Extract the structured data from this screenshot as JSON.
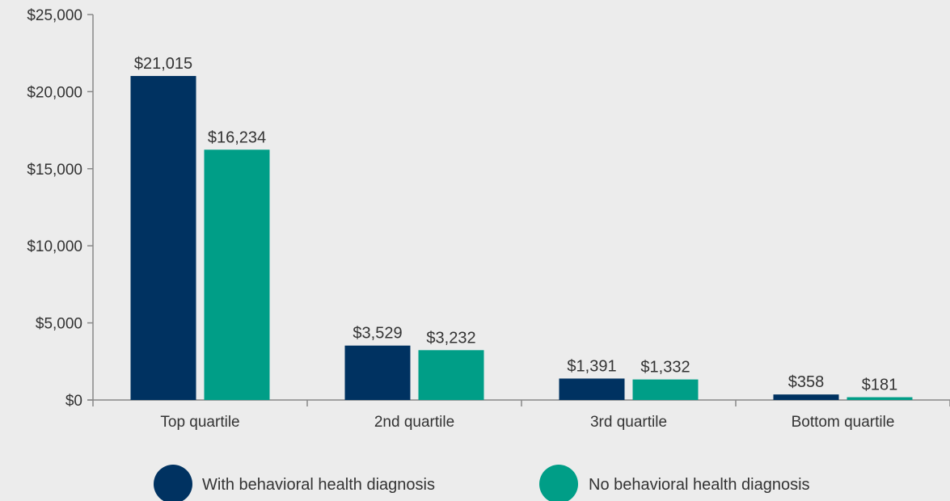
{
  "chart_data": {
    "type": "bar",
    "categories": [
      "Top quartile",
      "2nd quartile",
      "3rd quartile",
      "Bottom quartile"
    ],
    "series": [
      {
        "name": "With behavioral health diagnosis",
        "color": "#003261",
        "values": [
          21015,
          3529,
          1391,
          358
        ],
        "labels": [
          "$21,015",
          "$3,529",
          "$1,391",
          "$358"
        ]
      },
      {
        "name": "No behavioral health diagnosis",
        "color": "#009e87",
        "values": [
          16234,
          3232,
          1332,
          181
        ],
        "labels": [
          "$16,234",
          "$3,232",
          "$1,332",
          "$181"
        ]
      }
    ],
    "ylim": [
      0,
      25000
    ],
    "yticks": [
      0,
      5000,
      10000,
      15000,
      20000,
      25000
    ],
    "ytick_labels": [
      "$0",
      "$5,000",
      "$10,000",
      "$15,000",
      "$20,000",
      "$25,000"
    ],
    "grid": false,
    "legend_position": "bottom"
  }
}
